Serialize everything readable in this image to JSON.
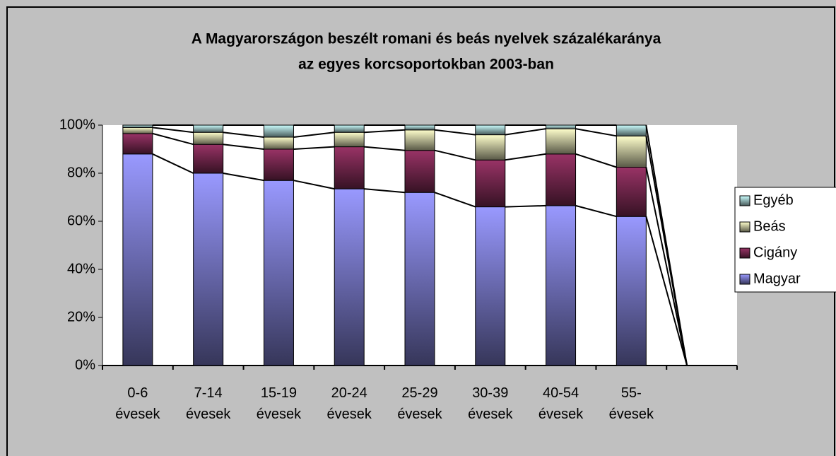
{
  "chart_data": {
    "type": "stacked_bar_100",
    "title": [
      "A Magyarországon beszélt romani és beás nyelvek százalékaránya",
      "az egyes korcsoportokban 2003-ban"
    ],
    "categories": [
      "0-6 évesek",
      "7-14 évesek",
      "15-19 évesek",
      "20-24 évesek",
      "25-29 évesek",
      "30-39 évesek",
      "40-54 évesek",
      "55- évesek",
      null
    ],
    "series": [
      {
        "name": "Magyar",
        "color": "#9999ff",
        "values": [
          88,
          80,
          77,
          73.5,
          72,
          66,
          66.5,
          62,
          0
        ]
      },
      {
        "name": "Cigány",
        "color": "#993366",
        "values": [
          8.5,
          12,
          13,
          17.5,
          17.5,
          19.5,
          21.5,
          20.5,
          0
        ]
      },
      {
        "name": "Beás",
        "color": "#ffffcc",
        "values": [
          2.5,
          5,
          5,
          6,
          8.5,
          10.5,
          10.5,
          13,
          0
        ]
      },
      {
        "name": "Egyéb",
        "color": "#ccffff",
        "values": [
          1,
          3,
          5,
          3,
          2,
          4,
          1.5,
          4.5,
          0
        ]
      }
    ],
    "ylim": [
      0,
      100
    ],
    "yticks": [
      {
        "value": 0,
        "label": "0%"
      },
      {
        "value": 20,
        "label": "20%"
      },
      {
        "value": 40,
        "label": "40%"
      },
      {
        "value": 60,
        "label": "60%"
      },
      {
        "value": 80,
        "label": "80%"
      },
      {
        "value": 100,
        "label": "100%"
      }
    ],
    "series_lines": true,
    "legend": "right"
  }
}
